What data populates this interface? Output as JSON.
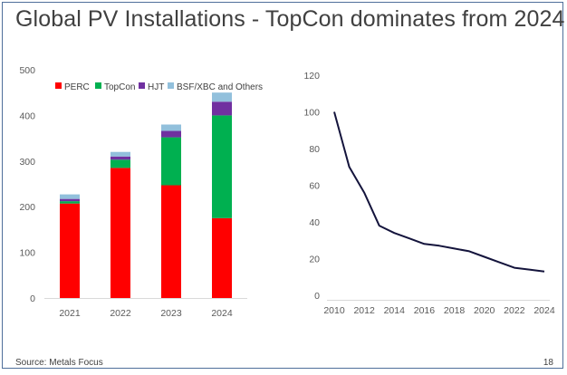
{
  "title": "Global PV Installations - TopCon dominates from 2024",
  "footer": {
    "source": "Source: Metals Focus",
    "page": "18"
  },
  "chart_data": [
    {
      "type": "bar",
      "stacked": true,
      "categories": [
        "2021",
        "2022",
        "2023",
        "2024"
      ],
      "series": [
        {
          "name": "PERC",
          "color": "#ff0000",
          "values": [
            207,
            285,
            247,
            175
          ]
        },
        {
          "name": "TopCon",
          "color": "#00b050",
          "values": [
            5,
            18,
            105,
            225
          ]
        },
        {
          "name": "HJT",
          "color": "#7030a0",
          "values": [
            5,
            7,
            14,
            30
          ]
        },
        {
          "name": "BSF/XBC and Others",
          "color": "#92c0dc",
          "values": [
            10,
            10,
            14,
            20
          ]
        }
      ],
      "yticks": [
        "0",
        "100",
        "200",
        "300",
        "400",
        "500"
      ],
      "ylim": [
        0,
        500
      ],
      "legend": "top",
      "title": "",
      "xlabel": "",
      "ylabel": ""
    },
    {
      "type": "line",
      "x": [
        2010,
        2011,
        2012,
        2013,
        2014,
        2015,
        2016,
        2017,
        2018,
        2019,
        2020,
        2021,
        2022,
        2023,
        2024
      ],
      "series": [
        {
          "name": "",
          "color": "#14143c",
          "values": [
            100,
            70,
            56,
            38,
            34,
            31,
            28,
            27,
            25.5,
            24,
            21,
            18,
            15,
            14,
            13
          ]
        }
      ],
      "xticks": [
        "2010",
        "2012",
        "2014",
        "2016",
        "2018",
        "2020",
        "2022",
        "2024"
      ],
      "yticks": [
        "0",
        "20",
        "40",
        "60",
        "80",
        "100",
        "120"
      ],
      "xlim": [
        2010,
        2024
      ],
      "ylim": [
        0,
        120
      ],
      "title": "",
      "xlabel": "",
      "ylabel": ""
    }
  ]
}
